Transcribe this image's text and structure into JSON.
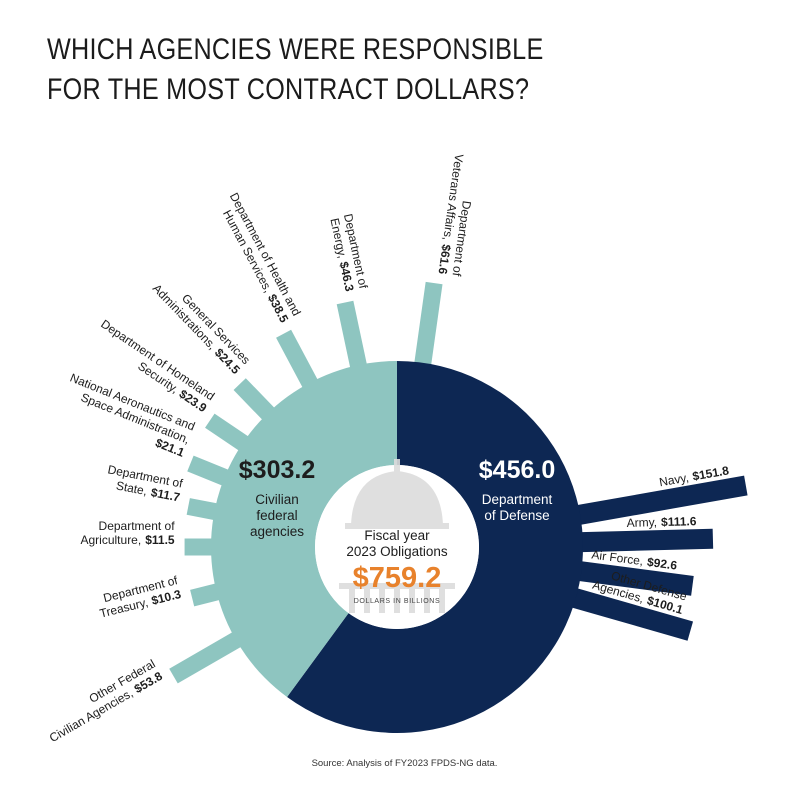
{
  "title": {
    "line1": "WHICH AGENCIES WERE RESPONSIBLE",
    "line2": "FOR THE MOST CONTRACT DOLLARS?"
  },
  "center": {
    "line1": "Fiscal year",
    "line2": "2023 Obligations",
    "total": "$759.2",
    "unit": "DOLLARS IN BILLIONS"
  },
  "source": "Source: Analysis of FY2023 FPDS-NG data.",
  "colors": {
    "civilian": "#8ec5c0",
    "defense": "#0d2753",
    "accent": "#e8822c",
    "text": "#1d1d1d"
  },
  "chart_data": {
    "type": "pie",
    "subtype": "donut with radial bars",
    "total": 759.2,
    "unit": "dollars in billions",
    "slices": [
      {
        "name_lines": [
          "$456.0",
          "Department",
          "of Defense"
        ],
        "value": 456.0,
        "color": "#0d2753"
      },
      {
        "name_lines": [
          "$303.2",
          "Civilian",
          "federal",
          "agencies"
        ],
        "value": 303.2,
        "color": "#8ec5c0"
      }
    ],
    "civilian_agencies": [
      {
        "name_lines": [
          "Department of",
          "Veterans Affairs,"
        ],
        "value_label": "$61.6",
        "value": 61.6
      },
      {
        "name_lines": [
          "Department of",
          "Energy,"
        ],
        "value_label": "$46.3",
        "value": 46.3
      },
      {
        "name_lines": [
          "Department of Health and",
          "Human Services,"
        ],
        "value_label": "$38.5",
        "value": 38.5
      },
      {
        "name_lines": [
          "General Services",
          "Administrations,"
        ],
        "value_label": "$24.5",
        "value": 24.5
      },
      {
        "name_lines": [
          "Department of Homeland",
          "Security,"
        ],
        "value_label": "$23.9",
        "value": 23.9
      },
      {
        "name_lines": [
          "National Aeronautics and",
          "Space Administration,",
          ""
        ],
        "value_label": "$21.1",
        "value": 21.1
      },
      {
        "name_lines": [
          "Department of",
          "State,"
        ],
        "value_label": "$11.7",
        "value": 11.7
      },
      {
        "name_lines": [
          "Department of",
          "Agriculture,"
        ],
        "value_label": "$11.5",
        "value": 11.5
      },
      {
        "name_lines": [
          "Department of",
          "Treasury,"
        ],
        "value_label": "$10.3",
        "value": 10.3
      },
      {
        "name_lines": [
          "Other Federal",
          "Civilian Agencies,"
        ],
        "value_label": "$53.8",
        "value": 53.8
      }
    ],
    "defense_agencies": [
      {
        "name_lines": [
          "Navy,"
        ],
        "value_label": "$151.8",
        "value": 151.8
      },
      {
        "name_lines": [
          "Army,"
        ],
        "value_label": "$111.6",
        "value": 111.6
      },
      {
        "name_lines": [
          "Air Force,"
        ],
        "value_label": "$92.6",
        "value": 92.6
      },
      {
        "name_lines": [
          "Other Defense",
          "Agencies,"
        ],
        "value_label": "$100.1",
        "value": 100.1
      }
    ]
  }
}
